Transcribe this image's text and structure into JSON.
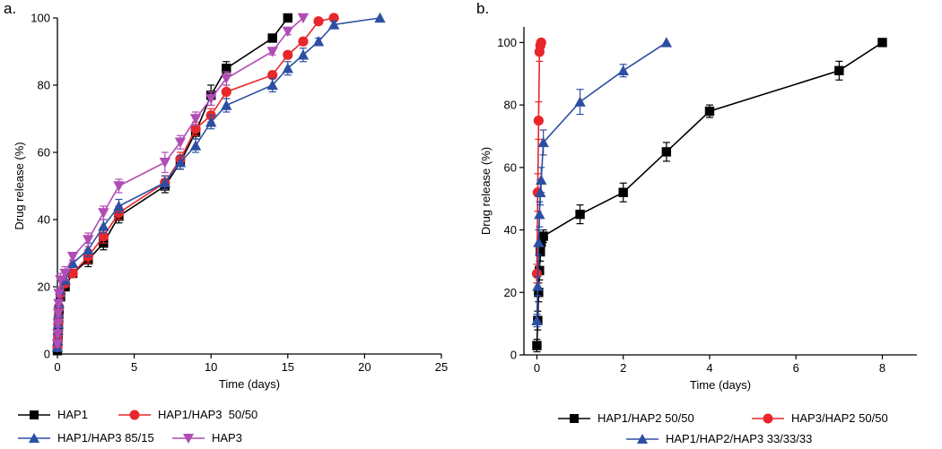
{
  "chart_data": [
    {
      "type": "line",
      "panel_label": "a.",
      "title": "",
      "xlabel": "Time (days)",
      "ylabel": "Drug release (%)",
      "xlim": [
        0,
        25
      ],
      "ylim": [
        0,
        100
      ],
      "xticks": [
        0,
        5,
        10,
        15,
        20,
        25
      ],
      "yticks": [
        0,
        20,
        40,
        60,
        80,
        100
      ],
      "grid": false,
      "legend_position": "bottom",
      "series": [
        {
          "name": "HAP1",
          "color": "#000000",
          "marker": "square",
          "x": [
            0,
            0.02,
            0.04,
            0.06,
            0.08,
            0.1,
            0.2,
            0.5,
            1,
            2,
            3,
            4,
            7,
            8,
            9,
            10,
            11,
            14,
            15
          ],
          "y": [
            1,
            3,
            5,
            8,
            10,
            13,
            17,
            20,
            24,
            28,
            33,
            41,
            50,
            57,
            66,
            77,
            85,
            94,
            100
          ],
          "err": [
            1,
            1,
            1,
            1,
            1,
            1,
            1,
            1,
            1,
            2,
            2,
            2,
            2,
            2,
            2,
            3,
            2,
            1,
            0
          ]
        },
        {
          "name": "HAP1/HAP3  50/50",
          "color": "#e8262b",
          "marker": "circle",
          "x": [
            0,
            0.02,
            0.04,
            0.06,
            0.08,
            0.1,
            0.2,
            0.5,
            1,
            2,
            3,
            4,
            7,
            8,
            9,
            10,
            11,
            14,
            15,
            16,
            17,
            18
          ],
          "y": [
            2,
            4,
            6,
            9,
            11,
            14,
            18,
            21,
            24,
            29,
            35,
            42,
            51,
            58,
            67,
            71,
            78,
            83,
            89,
            93,
            99,
            100
          ],
          "err": [
            1,
            1,
            1,
            1,
            1,
            1,
            1,
            1,
            1,
            2,
            2,
            2,
            2,
            2,
            2,
            2,
            2,
            1,
            1,
            1,
            0,
            0
          ]
        },
        {
          "name": "HAP1/HAP3 85/15",
          "color": "#2d4fa3",
          "marker": "triangle-up",
          "x": [
            0,
            0.02,
            0.04,
            0.06,
            0.08,
            0.1,
            0.2,
            0.5,
            1,
            2,
            3,
            4,
            7,
            8,
            9,
            10,
            11,
            14,
            15,
            16,
            17,
            18,
            21
          ],
          "y": [
            2,
            4,
            7,
            9,
            12,
            15,
            19,
            22,
            27,
            31,
            38,
            44,
            51,
            57,
            62,
            69,
            74,
            80,
            85,
            89,
            93,
            98,
            100
          ],
          "err": [
            1,
            1,
            1,
            1,
            1,
            1,
            1,
            1,
            1,
            2,
            2,
            2,
            2,
            2,
            2,
            2,
            2,
            2,
            2,
            2,
            1,
            1,
            0
          ]
        },
        {
          "name": "HAP3",
          "color": "#b04cb4",
          "marker": "triangle-down",
          "x": [
            0,
            0.02,
            0.04,
            0.06,
            0.08,
            0.1,
            0.2,
            0.5,
            1,
            2,
            3,
            4,
            7,
            8,
            9,
            10,
            11,
            14,
            15,
            16
          ],
          "y": [
            3,
            6,
            9,
            12,
            15,
            18,
            22,
            24,
            29,
            34,
            42,
            50,
            57,
            63,
            70,
            76,
            82,
            90,
            96,
            100
          ],
          "err": [
            1,
            1,
            1,
            1,
            1,
            1,
            2,
            2,
            1,
            2,
            2,
            2,
            3,
            2,
            2,
            2,
            2,
            1,
            1,
            0
          ]
        }
      ]
    },
    {
      "type": "line",
      "panel_label": "b.",
      "title": "",
      "xlabel": "Time (days)",
      "ylabel": "Drug release (%)",
      "xlim": [
        -0.3,
        8.8
      ],
      "ylim": [
        0,
        105
      ],
      "xticks": [
        0,
        2,
        4,
        6,
        8
      ],
      "yticks": [
        0,
        20,
        40,
        60,
        80,
        100
      ],
      "grid": false,
      "legend_position": "bottom",
      "series": [
        {
          "name": "HAP1/HAP2 50/50",
          "color": "#000000",
          "marker": "square",
          "x": [
            0,
            0.02,
            0.04,
            0.06,
            0.08,
            0.1,
            0.15,
            1,
            2,
            3,
            4,
            7,
            8
          ],
          "y": [
            3,
            11,
            20,
            27,
            33,
            36,
            38,
            45,
            52,
            65,
            78,
            91,
            100
          ],
          "err": [
            2,
            3,
            3,
            3,
            3,
            2,
            2,
            3,
            3,
            3,
            2,
            3,
            0
          ]
        },
        {
          "name": "HAP3/HAP2 50/50",
          "color": "#e8262b",
          "marker": "circle",
          "x": [
            0,
            0.02,
            0.04,
            0.06,
            0.08,
            0.1
          ],
          "y": [
            26,
            52,
            75,
            97,
            99,
            100
          ],
          "err": [
            3,
            6,
            6,
            3,
            1,
            0
          ]
        },
        {
          "name": "HAP1/HAP2/HAP3 33/33/33",
          "color": "#2d4fa3",
          "marker": "triangle-up",
          "x": [
            0,
            0.02,
            0.04,
            0.06,
            0.08,
            0.1,
            0.15,
            1,
            2,
            3
          ],
          "y": [
            11,
            22,
            36,
            45,
            52,
            56,
            68,
            81,
            91,
            100
          ],
          "err": [
            2,
            3,
            4,
            4,
            4,
            4,
            4,
            4,
            2,
            0
          ]
        }
      ]
    }
  ]
}
